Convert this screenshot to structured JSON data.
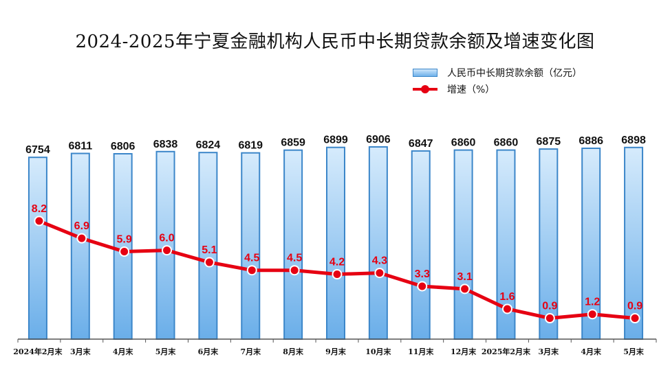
{
  "chart_data": {
    "type": "bar",
    "title": "2024-2025年宁夏金融机构人民币中长期贷款余额及增速变化图",
    "categories": [
      "2024年2月末",
      "3月末",
      "4月末",
      "5月末",
      "6月末",
      "7月末",
      "8月末",
      "9月末",
      "10月末",
      "11月末",
      "12月末",
      "2025年2月末",
      "3月末",
      "4月末",
      "5月末"
    ],
    "series": [
      {
        "name": "人民币中长期贷款余额（亿元）",
        "type": "bar",
        "values": [
          6754,
          6811,
          6806,
          6838,
          6824,
          6819,
          6859,
          6899,
          6906,
          6847,
          6860,
          6860,
          6875,
          6886,
          6898
        ]
      },
      {
        "name": "增速（%）",
        "type": "line",
        "values": [
          8.2,
          6.9,
          5.9,
          6.0,
          5.1,
          4.5,
          4.5,
          4.2,
          4.3,
          3.3,
          3.1,
          1.6,
          0.9,
          1.2,
          0.9
        ]
      }
    ],
    "colors": {
      "bar_fill_top": "#d6ebfc",
      "bar_fill_bottom": "#6aaee9",
      "bar_border": "#3b86c9",
      "line": "#e60012"
    }
  }
}
